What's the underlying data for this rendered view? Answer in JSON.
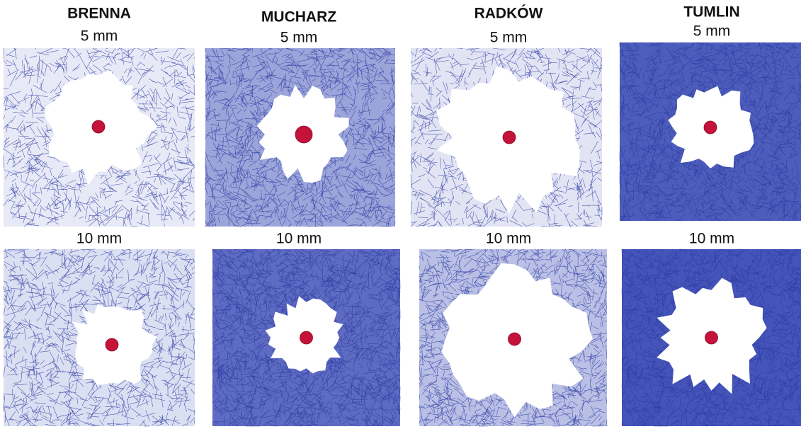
{
  "columns": [
    {
      "title": "BRENNA",
      "rows": [
        {
          "label": "5 mm"
        },
        {
          "label": "10 mm"
        }
      ]
    },
    {
      "title": "MUCHARZ",
      "rows": [
        {
          "label": "5 mm"
        },
        {
          "label": "10 mm"
        }
      ]
    },
    {
      "title": "RADKÓW",
      "rows": [
        {
          "label": "5 mm"
        },
        {
          "label": "10 mm"
        }
      ]
    },
    {
      "title": "TUMLIN",
      "rows": [
        {
          "label": "5 mm"
        },
        {
          "label": "10 mm"
        }
      ]
    }
  ]
}
